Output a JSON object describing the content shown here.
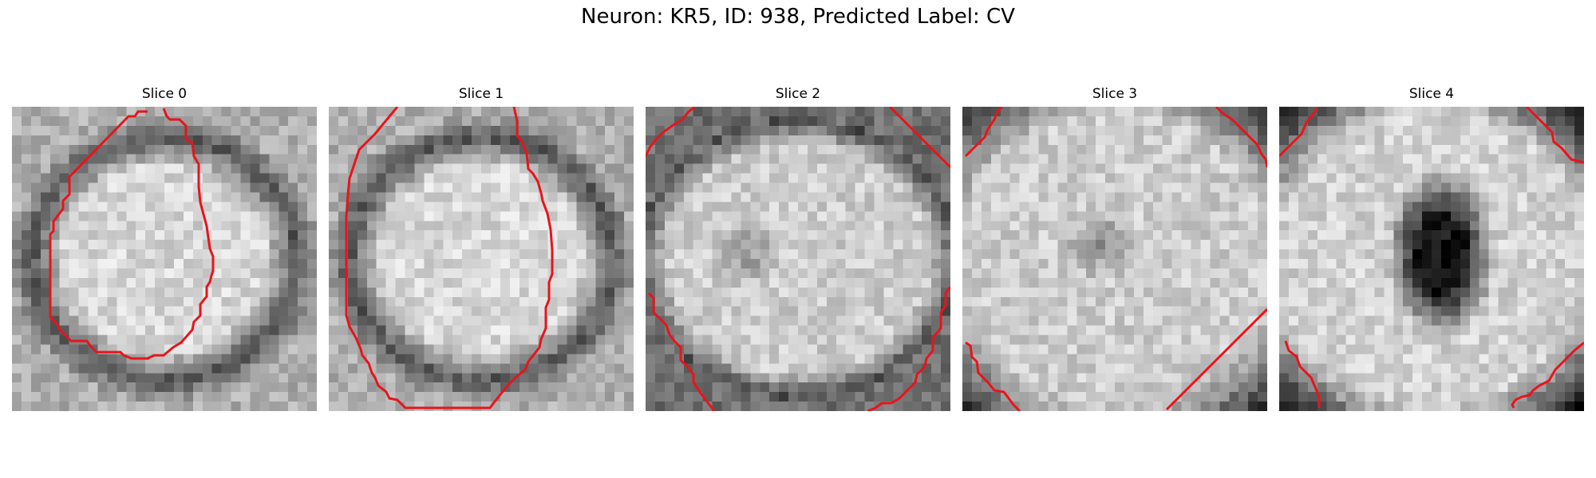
{
  "figure": {
    "title": "Neuron: KR5, ID: 938, Predicted Label: CV"
  },
  "panels": [
    {
      "title": "Slice 0",
      "pattern": "disk",
      "boundary_color": "#e8141b"
    },
    {
      "title": "Slice 1",
      "pattern": "disk",
      "boundary_color": "#e8141b"
    },
    {
      "title": "Slice 2",
      "pattern": "large-disk-faint-center",
      "boundary_color": "#e8141b"
    },
    {
      "title": "Slice 3",
      "pattern": "bright-with-faint-center",
      "boundary_color": "#e8141b"
    },
    {
      "title": "Slice 4",
      "pattern": "bright-with-dark-center",
      "boundary_color": "#e8141b"
    }
  ]
}
